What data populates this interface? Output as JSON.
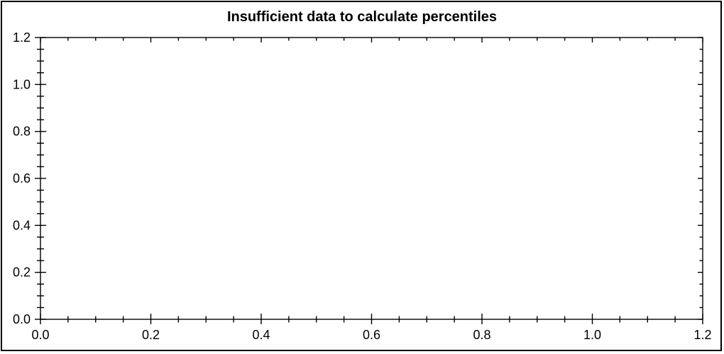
{
  "window": {
    "background": "#ffffff",
    "border_color": "#000000"
  },
  "chart_data": {
    "type": "line",
    "title": "Insufficient data to calculate percentiles",
    "series": [],
    "grid": false,
    "frame": "box",
    "legend": "none",
    "x_axis": {
      "label": "",
      "min": 0,
      "max": 1.2,
      "major_tick_step": 0.2,
      "minor_tick_step": 0.05,
      "major_tick_labels": [
        "0.0",
        "0.2",
        "0.4",
        "0.6",
        "0.8",
        "1.0",
        "1.2"
      ],
      "tick_style_bottom": "cross",
      "tick_style_top": "inward"
    },
    "y_axis": {
      "label": "",
      "min": 0,
      "max": 1.2,
      "major_tick_step": 0.2,
      "minor_tick_step": 0.05,
      "major_tick_labels": [
        "0.0",
        "0.2",
        "0.4",
        "0.6",
        "0.8",
        "1.0",
        "1.2"
      ],
      "tick_style_left": "cross",
      "tick_style_right": "inward"
    },
    "colors": {
      "axis": "#000000",
      "text": "#000000",
      "plot_background": "#ffffff"
    }
  }
}
